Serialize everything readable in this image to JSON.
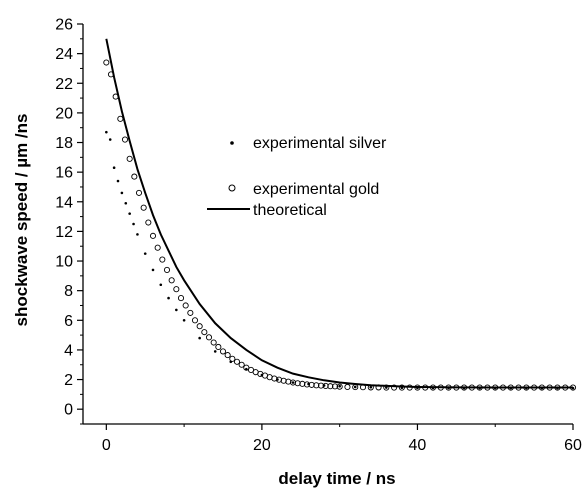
{
  "chart_data": {
    "type": "scatter",
    "title": "",
    "xlabel": "delay time / ns",
    "ylabel": "shockwave speed / µm /ns",
    "xlim": [
      -3,
      60
    ],
    "ylim": [
      -1,
      26
    ],
    "x_ticks": [
      0,
      20,
      40,
      60
    ],
    "y_ticks": [
      0,
      2,
      4,
      6,
      8,
      10,
      12,
      14,
      16,
      18,
      20,
      22,
      24,
      26
    ],
    "grid": false,
    "legend_position": "middle",
    "legend": [
      {
        "label": "experimental silver",
        "marker": "star"
      },
      {
        "label": "experimental gold",
        "marker": "open-circle"
      },
      {
        "label": "theoretical",
        "marker": "line"
      }
    ],
    "series": [
      {
        "name": "experimental silver",
        "marker": "star",
        "x": [
          0,
          0.5,
          1,
          1.5,
          2,
          2.5,
          3,
          3.5,
          4,
          5,
          6,
          7,
          8,
          9,
          10,
          12,
          14,
          16,
          18,
          20,
          22,
          24,
          26,
          28,
          30,
          32,
          34,
          36,
          38,
          40,
          42,
          44,
          46,
          48,
          50,
          52,
          54,
          56,
          58,
          60
        ],
        "y": [
          18.7,
          18.2,
          16.3,
          15.4,
          14.6,
          13.9,
          13.2,
          12.5,
          11.8,
          10.5,
          9.4,
          8.4,
          7.5,
          6.7,
          6.0,
          4.8,
          3.9,
          3.2,
          2.7,
          2.3,
          2.0,
          1.8,
          1.7,
          1.6,
          1.55,
          1.5,
          1.48,
          1.46,
          1.45,
          1.44,
          1.43,
          1.43,
          1.42,
          1.42,
          1.42,
          1.42,
          1.42,
          1.42,
          1.42,
          1.42
        ]
      },
      {
        "name": "experimental gold",
        "marker": "open-circle",
        "x": [
          0,
          0.6,
          1.2,
          1.8,
          2.4,
          3.0,
          3.6,
          4.2,
          4.8,
          5.4,
          6.0,
          6.6,
          7.2,
          7.8,
          8.4,
          9.0,
          9.6,
          10.2,
          10.8,
          11.4,
          12.0,
          12.6,
          13.2,
          13.8,
          14.4,
          15.0,
          15.6,
          16.2,
          16.8,
          17.4,
          18.0,
          18.6,
          19.2,
          19.8,
          20.4,
          21.0,
          21.6,
          22.2,
          22.8,
          23.4,
          24.0,
          24.6,
          25.2,
          25.8,
          26.4,
          27.0,
          27.6,
          28.2,
          28.8,
          29.4,
          30.0,
          31.0,
          32.0,
          33.0,
          34.0,
          35.0,
          36.0,
          37.0,
          38.0,
          39.0,
          40.0,
          41.0,
          42.0,
          43.0,
          44.0,
          45.0,
          46.0,
          47.0,
          48.0,
          49.0,
          50.0,
          51.0,
          52.0,
          53.0,
          54.0,
          55.0,
          56.0,
          57.0,
          58.0,
          59.0,
          60.0
        ],
        "y": [
          23.4,
          22.6,
          21.1,
          19.6,
          18.2,
          16.9,
          15.7,
          14.6,
          13.6,
          12.6,
          11.7,
          10.9,
          10.1,
          9.4,
          8.7,
          8.1,
          7.5,
          7.0,
          6.5,
          6.0,
          5.6,
          5.2,
          4.85,
          4.5,
          4.2,
          3.9,
          3.65,
          3.4,
          3.2,
          3.0,
          2.8,
          2.65,
          2.5,
          2.38,
          2.27,
          2.16,
          2.07,
          1.99,
          1.92,
          1.86,
          1.8,
          1.75,
          1.71,
          1.67,
          1.64,
          1.61,
          1.59,
          1.57,
          1.55,
          1.54,
          1.52,
          1.5,
          1.49,
          1.48,
          1.47,
          1.47,
          1.46,
          1.46,
          1.46,
          1.46,
          1.46,
          1.46,
          1.46,
          1.46,
          1.46,
          1.46,
          1.46,
          1.46,
          1.46,
          1.46,
          1.46,
          1.46,
          1.46,
          1.46,
          1.46,
          1.46,
          1.46,
          1.46,
          1.46,
          1.46,
          1.46
        ]
      },
      {
        "name": "theoretical",
        "marker": "line",
        "x": [
          0,
          1,
          2,
          3,
          4,
          5,
          6,
          7,
          8,
          9,
          10,
          12,
          14,
          16,
          18,
          20,
          22,
          24,
          26,
          28,
          30,
          32,
          34,
          36,
          38,
          40,
          45,
          50,
          55,
          60
        ],
        "y": [
          25.0,
          22.4,
          20.1,
          18.1,
          16.2,
          14.6,
          13.1,
          11.8,
          10.7,
          9.6,
          8.7,
          7.1,
          5.8,
          4.8,
          4.0,
          3.3,
          2.8,
          2.4,
          2.15,
          1.95,
          1.8,
          1.7,
          1.62,
          1.57,
          1.53,
          1.5,
          1.47,
          1.46,
          1.46,
          1.46
        ]
      }
    ]
  }
}
